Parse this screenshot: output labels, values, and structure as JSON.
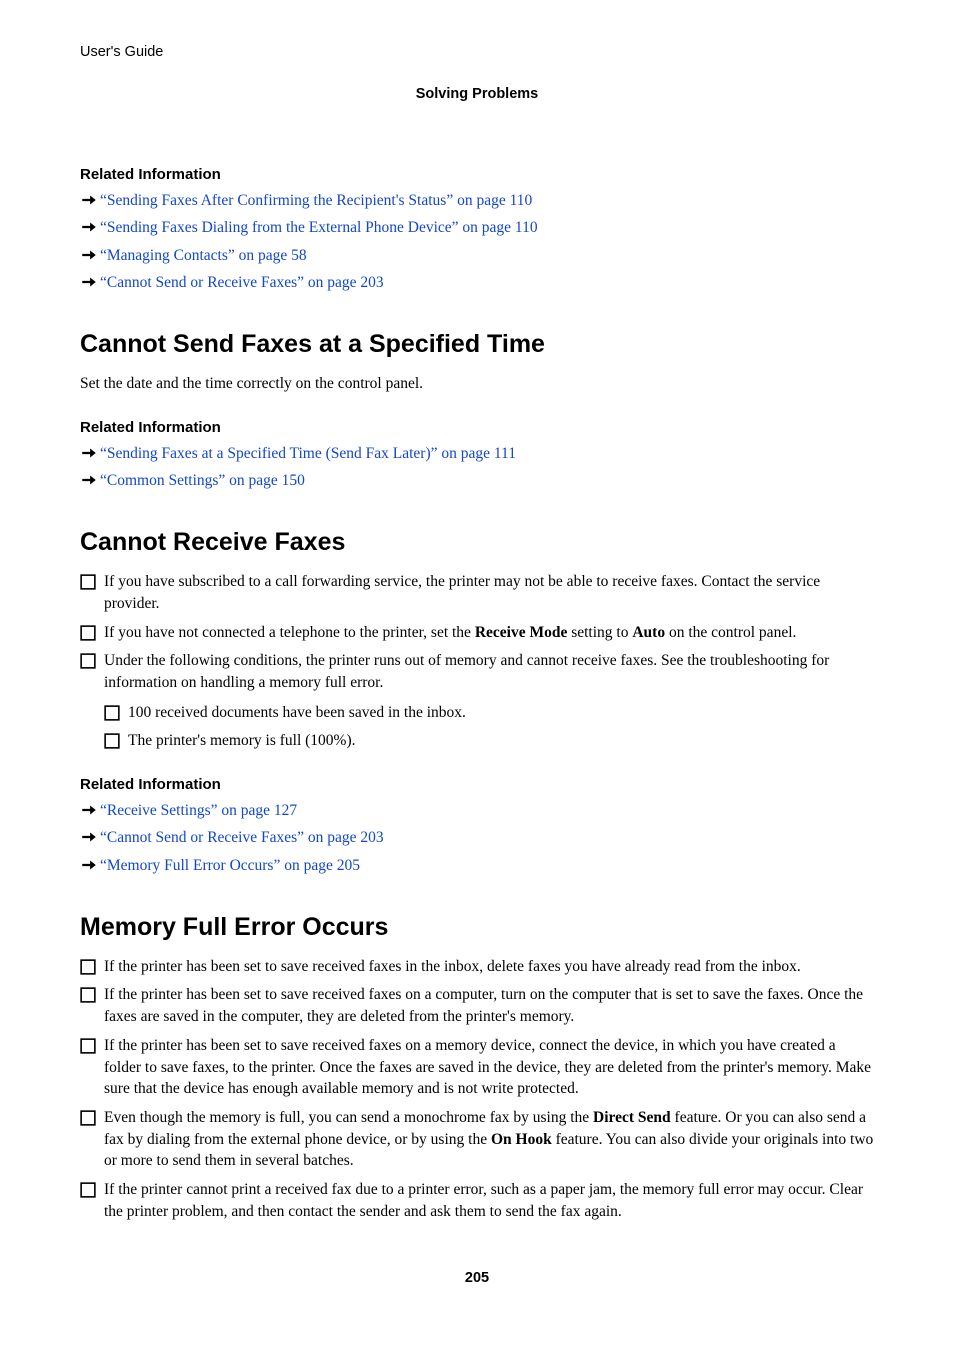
{
  "colors": {
    "link_blue": "#1347c8",
    "text_black": "#000000",
    "page_bg": "#ffffff"
  },
  "fonts": {
    "sans": "Myriad Pro, Helvetica Neue, Arial, sans-serif",
    "serif": "Minion Pro, Times New Roman, Georgia, serif",
    "body_size_pt": 11.5,
    "h2_size_pt": 19,
    "h4_size_pt": 11
  },
  "header": {
    "doc_title": "User's Guide",
    "section_title": "Solving Problems"
  },
  "block1": {
    "heading": "Related Information",
    "links": [
      "“Sending Faxes After Confirming the Recipient's Status” on page 110",
      "“Sending Faxes Dialing from the External Phone Device” on page 110",
      "“Managing Contacts” on page 58",
      "“Cannot Send or Receive Faxes” on page 203"
    ]
  },
  "section2": {
    "title": "Cannot Send Faxes at a Specified Time",
    "para": "Set the date and the time correctly on the control panel.",
    "related_heading": "Related Information",
    "links": [
      "“Sending Faxes at a Specified Time (Send Fax Later)” on page 111",
      "“Common Settings” on page 150"
    ]
  },
  "section3": {
    "title": "Cannot Receive Faxes",
    "items": [
      "If you have subscribed to a call forwarding service, the printer may not be able to receive faxes. Contact the service provider.",
      "__HTML__If you have not connected a telephone to the printer, set the <b>Receive Mode</b> setting to <b>Auto</b> on the control panel.",
      "Under the following conditions, the printer runs out of memory and cannot receive faxes. See the troubleshooting for information on handling a memory full error."
    ],
    "nested": [
      "100 received documents have been saved in the inbox.",
      "The printer's memory is full (100%)."
    ],
    "related_heading": "Related Information",
    "links": [
      "“Receive Settings” on page 127",
      "“Cannot Send or Receive Faxes” on page 203",
      "“Memory Full Error Occurs” on page 205"
    ]
  },
  "section4": {
    "title": "Memory Full Error Occurs",
    "items": [
      "If the printer has been set to save received faxes in the inbox, delete faxes you have already read from the inbox.",
      "If the printer has been set to save received faxes on a computer, turn on the computer that is set to save the faxes. Once the faxes are saved in the computer, they are deleted from the printer's memory.",
      "If the printer has been set to save received faxes on a memory device, connect the device, in which you have created a folder to save faxes, to the printer. Once the faxes are saved in the device, they are deleted from the printer's memory. Make sure that the device has enough available memory and is not write protected.",
      "__HTML__Even though the memory is full, you can send a monochrome fax by using the <b>Direct Send</b> feature. Or you can also send a fax by dialing from the external phone device, or by using the <b>On Hook</b> feature. You can also divide your originals into two or more to send them in several batches.",
      "If the printer cannot print a received fax due to a printer error, such as a paper jam, the memory full error may occur. Clear the printer problem, and then contact the sender and ask them to send the fax again."
    ]
  },
  "page_number": "205"
}
